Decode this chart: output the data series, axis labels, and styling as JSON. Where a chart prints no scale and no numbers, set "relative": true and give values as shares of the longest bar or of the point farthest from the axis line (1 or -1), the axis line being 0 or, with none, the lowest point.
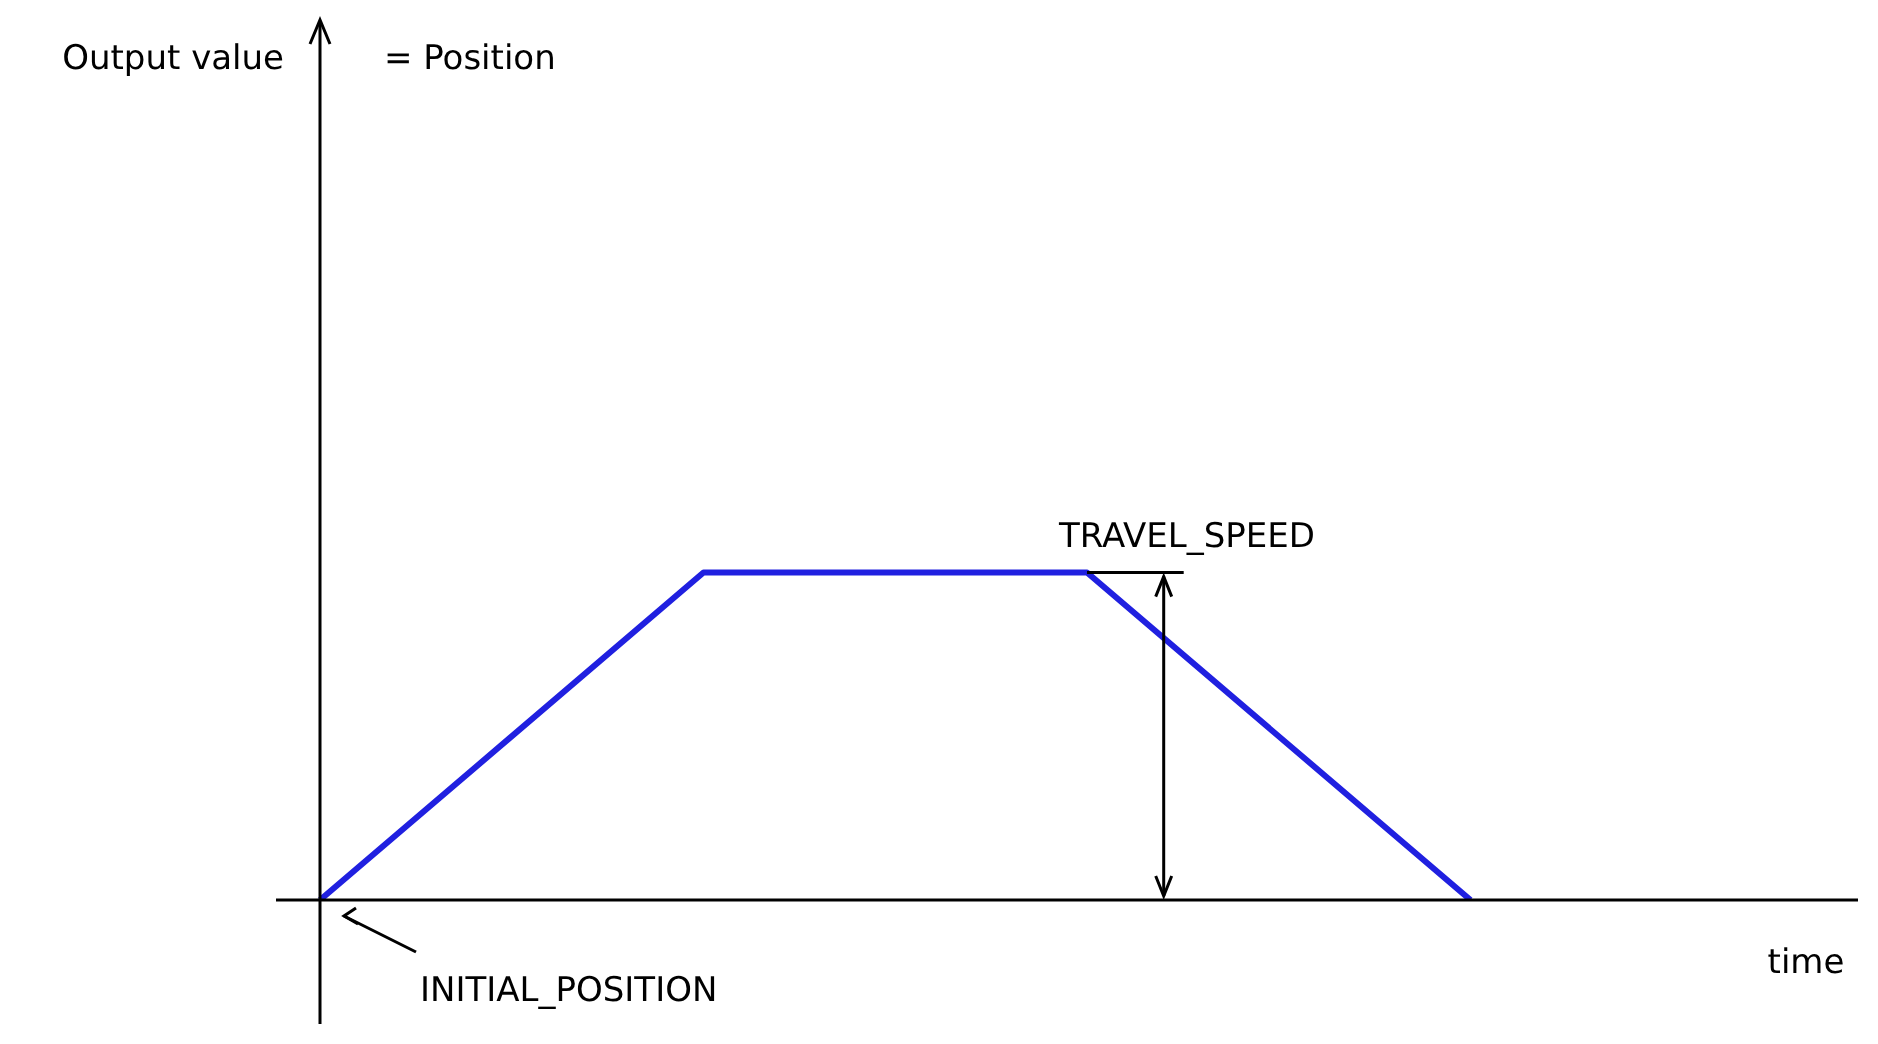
{
  "chart_data": {
    "type": "line",
    "relative": true,
    "xlabel": "time",
    "categories": [
      null,
      null,
      null,
      null,
      null
    ],
    "values": [
      0,
      1,
      1,
      0,
      null
    ],
    "color": "#2020e0",
    "marker": "none",
    "line_style": "solid",
    "legend": false,
    "annotations": [
      "Output value",
      "= Position",
      "TRAVEL_SPEED",
      "INITIAL_POSITION"
    ]
  }
}
